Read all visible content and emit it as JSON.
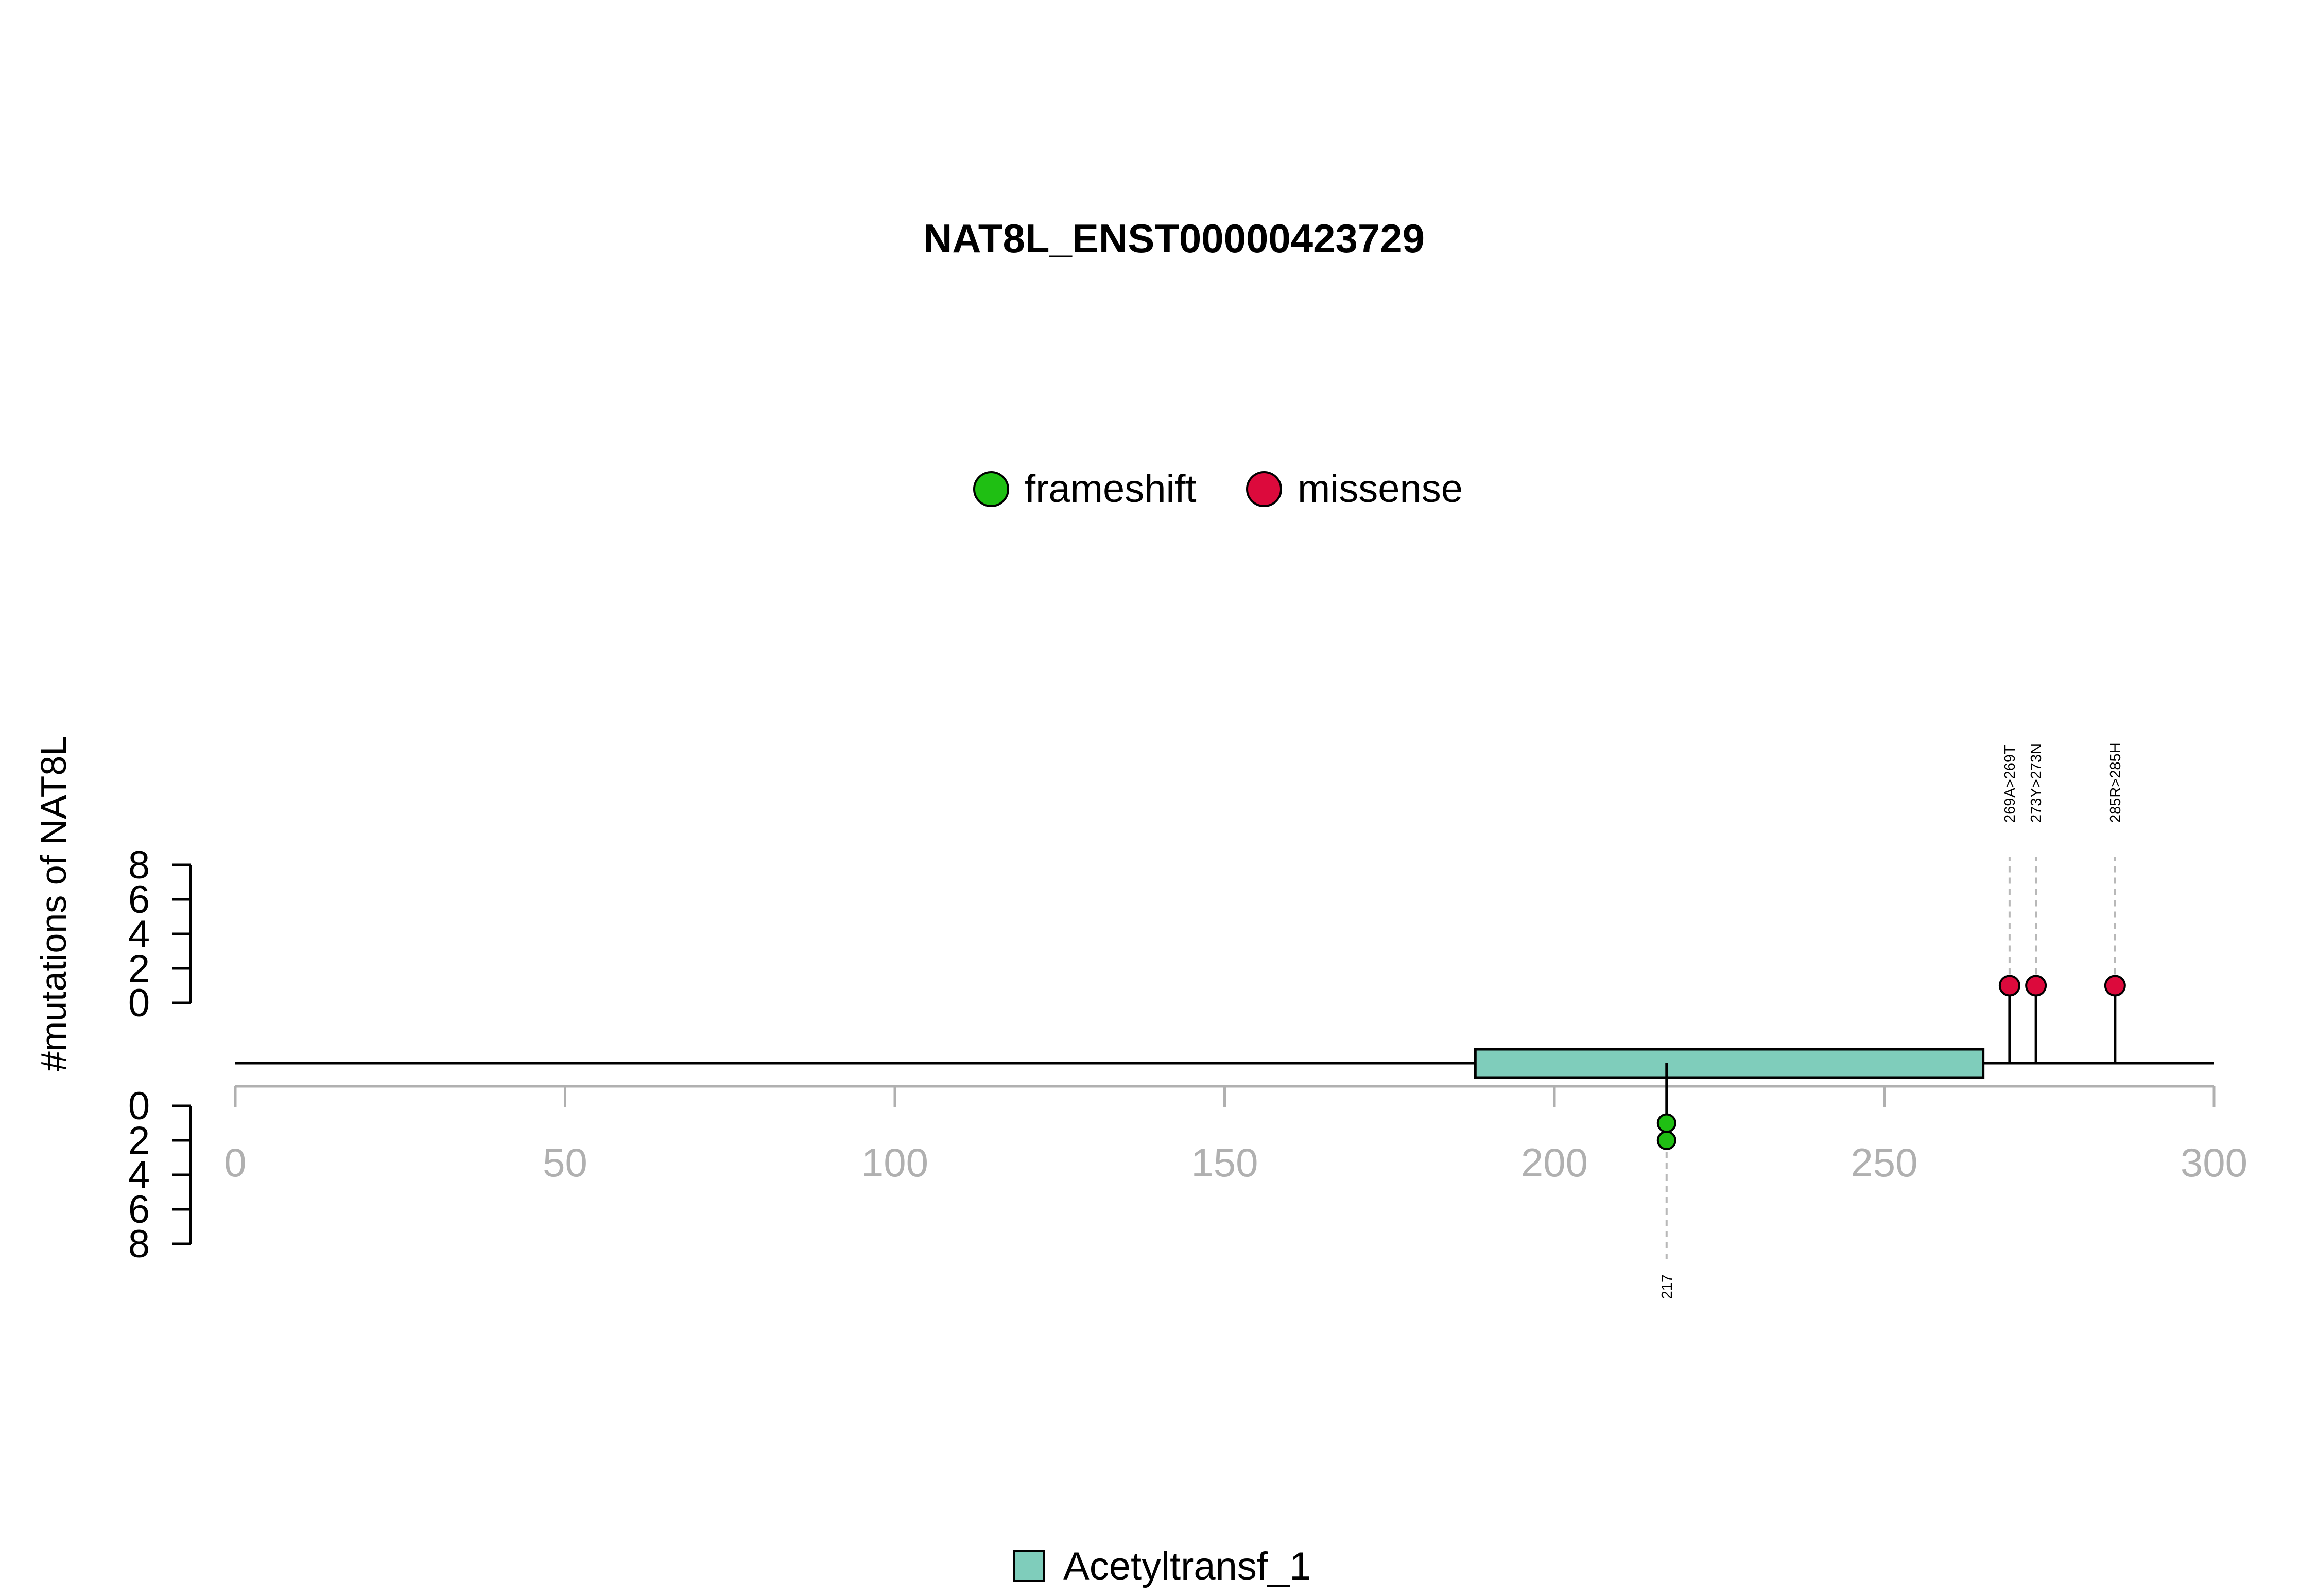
{
  "chart_data": {
    "type": "lollipop",
    "title": "NAT8L_ENST00000423729",
    "ylabel": "#mutations of NAT8L",
    "xlim": [
      0,
      300
    ],
    "x_ticks": [
      0,
      50,
      100,
      150,
      200,
      250,
      300
    ],
    "y_ticks_top": [
      0,
      2,
      4,
      6,
      8
    ],
    "y_ticks_bottom": [
      0,
      2,
      4,
      6,
      8
    ],
    "protein_length": 300,
    "legend_mutation_types": [
      {
        "name": "frameshift",
        "color": "#1fbf13"
      },
      {
        "name": "missense",
        "color": "#dc0a3c"
      }
    ],
    "domains": [
      {
        "name": "Acetyltransf_1",
        "start": 188,
        "end": 265,
        "color": "#7fcdbb"
      }
    ],
    "mutations_above": [
      {
        "position": 269,
        "label": "269A>269T",
        "type": "missense",
        "count": 1
      },
      {
        "position": 273,
        "label": "273Y>273N",
        "type": "missense",
        "count": 1
      },
      {
        "position": 285,
        "label": "285R>285H",
        "type": "missense",
        "count": 1
      }
    ],
    "mutations_below": [
      {
        "position": 217,
        "label": "217",
        "type": "frameshift",
        "count": 2
      }
    ]
  }
}
